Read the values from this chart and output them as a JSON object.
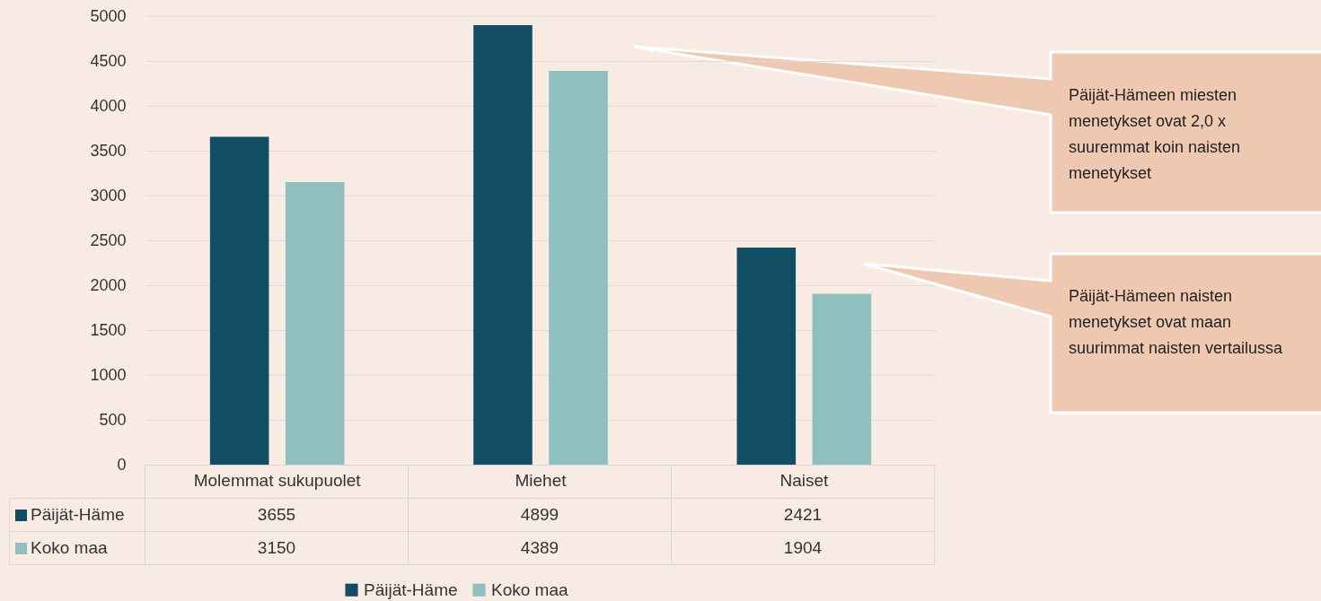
{
  "chart_data": {
    "type": "bar",
    "categories": [
      "Molemmat sukupuolet",
      "Miehet",
      "Naiset"
    ],
    "series": [
      {
        "name": "Päijät-Häme",
        "color": "#124e63",
        "values": [
          3655,
          4899,
          2421
        ]
      },
      {
        "name": "Koko maa",
        "color": "#8fbfbe",
        "values": [
          3150,
          4389,
          1904
        ]
      }
    ],
    "ylim": [
      0,
      5000
    ],
    "yticks": [
      0,
      500,
      1000,
      1500,
      2000,
      2500,
      3000,
      3500,
      4000,
      4500,
      5000
    ],
    "grid": "y",
    "legend": "bottom",
    "data_labels": true,
    "annotations": [
      "Päijät-Hämeen miesten menetykset ovat 2,0 x suuremmat koin naisten menetykset",
      "Päijät-Hämeen naisten menetykset ovat maan suurimmat naisten vertailussa"
    ]
  }
}
